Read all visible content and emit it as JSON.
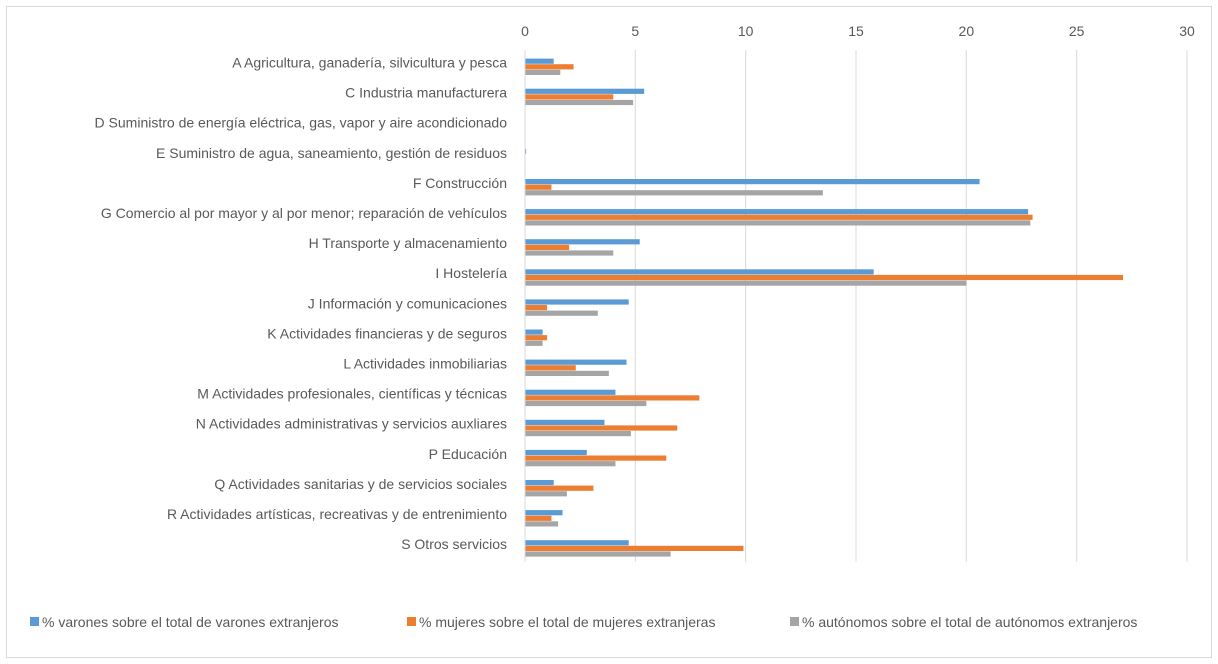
{
  "chart_data": {
    "type": "bar",
    "orientation": "horizontal",
    "axis_position": "top",
    "xlim": [
      0,
      30
    ],
    "xticks": [
      "0",
      "5",
      "10",
      "15",
      "20",
      "25",
      "30"
    ],
    "grid": true,
    "legend_position": "bottom",
    "colors": [
      "#5b9bd5",
      "#ed7d31",
      "#a5a5a5"
    ],
    "categories": [
      "A Agricultura, ganadería, silvicultura y pesca",
      "C Industria manufacturera",
      "D Suministro de energía eléctrica, gas, vapor y aire acondicionado",
      "E Suministro de agua, saneamiento, gestión de residuos",
      "F Construcción",
      "G Comercio al por mayor y al por menor; reparación de vehículos",
      "H Transporte y almacenamiento",
      "I Hostelería",
      "J Información y comunicaciones",
      "K Actividades financieras y de seguros",
      "L Actividades inmobiliarias",
      "M Actividades profesionales, científicas y técnicas",
      "N Actividades administrativas y servicios auxliares",
      "P Educación",
      "Q Actividades sanitarias y de servicios sociales",
      "R Actividades artísticas, recreativas y de entrenimiento",
      "S Otros servicios"
    ],
    "series": [
      {
        "name": "% varones sobre el total de varones extranjeros",
        "values": [
          1.3,
          5.4,
          0.0,
          0.05,
          20.6,
          22.8,
          5.2,
          15.8,
          4.7,
          0.8,
          4.6,
          4.1,
          3.6,
          2.8,
          1.3,
          1.7,
          4.7
        ]
      },
      {
        "name": "% mujeres sobre el total de mujeres extranjeras",
        "values": [
          2.2,
          4.0,
          0.0,
          0.0,
          1.2,
          23.0,
          2.0,
          27.1,
          1.0,
          1.0,
          2.3,
          7.9,
          6.9,
          6.4,
          3.1,
          1.2,
          9.9
        ]
      },
      {
        "name": "% autónomos sobre el total de autónomos extranjeros",
        "values": [
          1.6,
          4.9,
          0.0,
          0.0,
          13.5,
          22.9,
          4.0,
          20.0,
          3.3,
          0.8,
          3.8,
          5.5,
          4.8,
          4.1,
          1.9,
          1.5,
          6.6
        ]
      }
    ]
  }
}
